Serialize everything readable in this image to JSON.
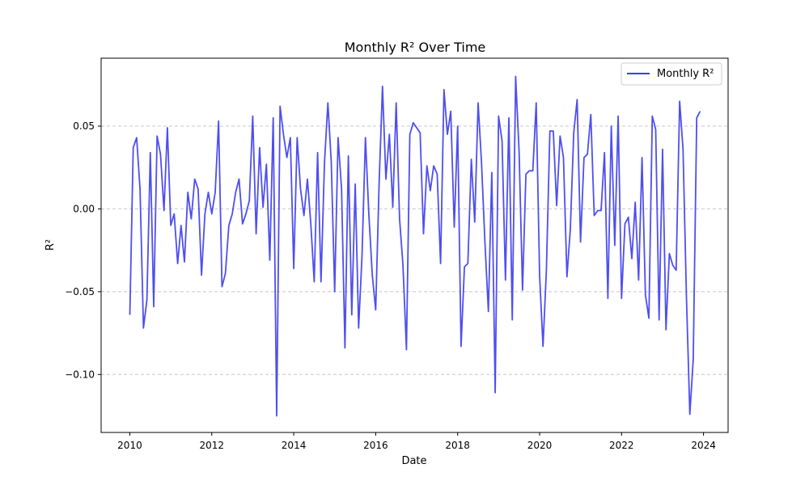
{
  "chart_data": {
    "type": "line",
    "title": "Monthly R² Over Time",
    "xlabel": "Date",
    "ylabel": "R²",
    "xlim": [
      2009.3,
      2024.6
    ],
    "ylim": [
      -0.135,
      0.091
    ],
    "xticks": [
      2010,
      2012,
      2014,
      2016,
      2018,
      2020,
      2022,
      2024
    ],
    "xtick_labels": [
      "2010",
      "2012",
      "2014",
      "2016",
      "2018",
      "2020",
      "2022",
      "2024"
    ],
    "yticks": [
      -0.1,
      -0.05,
      0.0,
      0.05
    ],
    "ytick_labels": [
      "−0.10",
      "−0.05",
      "0.00",
      "0.05"
    ],
    "grid": "y-dashed",
    "legend_position": "top-right",
    "line_color": "#3b3bef",
    "series": [
      {
        "name": "Monthly R²",
        "start_year": 2010,
        "values": [
          -0.064,
          0.037,
          0.043,
          0.012,
          -0.072,
          -0.055,
          0.034,
          -0.059,
          0.044,
          0.033,
          -0.001,
          0.049,
          -0.01,
          -0.003,
          -0.033,
          -0.01,
          -0.032,
          0.01,
          -0.006,
          0.018,
          0.012,
          -0.04,
          -0.003,
          0.01,
          -0.003,
          0.01,
          0.053,
          -0.047,
          -0.039,
          -0.01,
          -0.003,
          0.01,
          0.018,
          -0.009,
          -0.003,
          0.005,
          0.056,
          -0.015,
          0.037,
          0.001,
          0.027,
          -0.031,
          0.055,
          -0.125,
          0.062,
          0.045,
          0.031,
          0.043,
          -0.036,
          0.043,
          0.012,
          -0.004,
          0.018,
          -0.009,
          -0.044,
          0.034,
          -0.044,
          0.028,
          0.064,
          0.028,
          -0.05,
          0.043,
          0.012,
          -0.084,
          0.032,
          -0.064,
          0.015,
          -0.072,
          -0.028,
          0.043,
          -0.003,
          -0.04,
          -0.061,
          0.015,
          0.074,
          0.018,
          0.045,
          0.001,
          0.064,
          -0.006,
          -0.034,
          -0.085,
          0.045,
          0.052,
          0.049,
          0.046,
          -0.015,
          0.026,
          0.011,
          0.026,
          0.021,
          -0.033,
          0.072,
          0.045,
          0.059,
          -0.011,
          0.05,
          -0.083,
          -0.035,
          -0.033,
          0.03,
          -0.008,
          0.064,
          0.028,
          -0.021,
          -0.062,
          0.022,
          -0.111,
          0.056,
          0.041,
          -0.043,
          0.055,
          -0.067,
          0.08,
          0.034,
          -0.049,
          0.021,
          0.023,
          0.023,
          0.064,
          -0.04,
          -0.083,
          -0.037,
          0.047,
          0.047,
          0.002,
          0.044,
          0.031,
          -0.041,
          -0.012,
          0.046,
          0.066,
          -0.02,
          0.031,
          0.033,
          0.057,
          -0.004,
          -0.001,
          -0.001,
          0.034,
          -0.054,
          0.05,
          -0.022,
          0.056,
          -0.054,
          -0.009,
          -0.005,
          -0.03,
          0.004,
          -0.043,
          0.031,
          -0.052,
          -0.066,
          0.056,
          0.048,
          -0.067,
          0.036,
          -0.073,
          -0.027,
          -0.034,
          -0.037,
          0.065,
          0.036,
          -0.053,
          -0.124,
          -0.091,
          0.055,
          0.059
        ]
      }
    ]
  }
}
